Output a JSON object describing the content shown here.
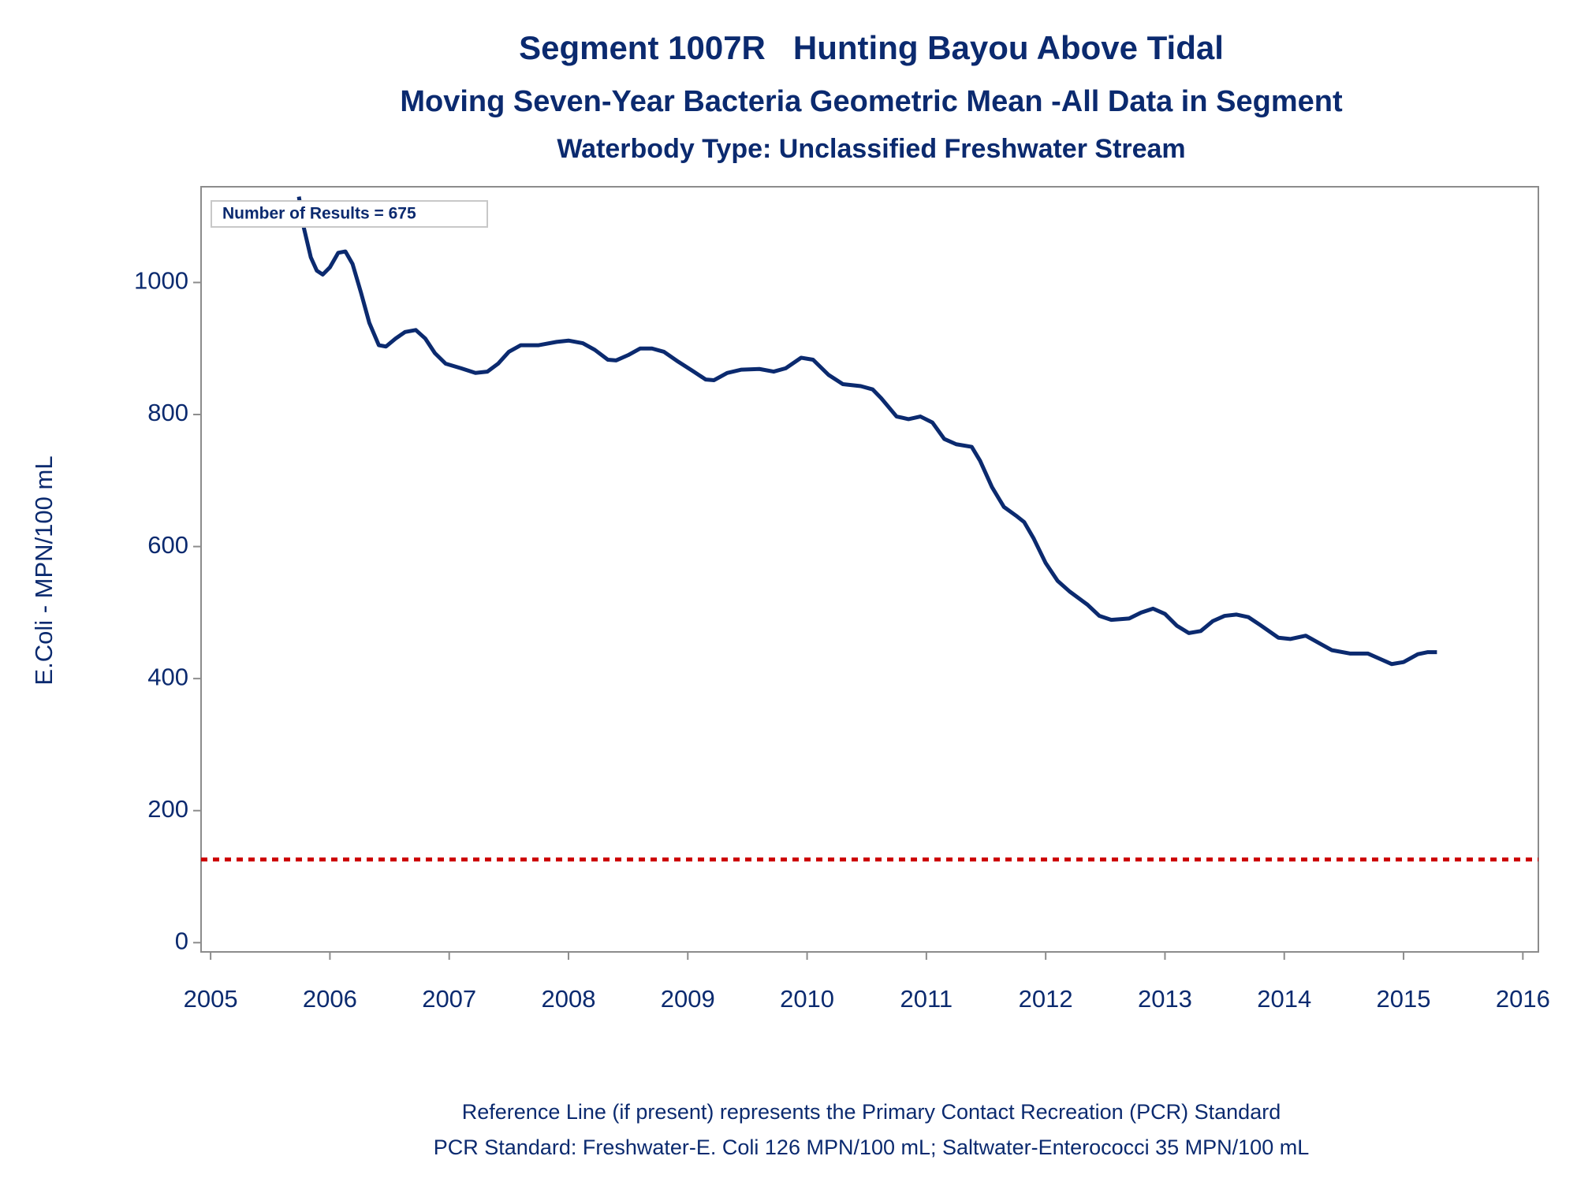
{
  "chart_data": {
    "type": "line",
    "title": "Segment 1007R   Hunting Bayou Above Tidal",
    "subtitles": [
      "Moving Seven-Year Bacteria Geometric Mean -All Data in Segment",
      "Waterbody Type: Unclassified Freshwater Stream"
    ],
    "y_label": "E.Coli - MPN/100 mL",
    "annotation": "Number of Results = 675",
    "footnotes": [
      "Reference Line (if present) represents the Primary Contact Recreation (PCR) Standard",
      "PCR Standard: Freshwater-E. Coli 126 MPN/100 mL; Saltwater-Enterococci 35 MPN/100 mL"
    ],
    "xlim": [
      2004.92,
      2016.13
    ],
    "xticks": [
      2005,
      2006,
      2007,
      2008,
      2009,
      2010,
      2011,
      2012,
      2013,
      2014,
      2015,
      2016
    ],
    "ylim": [
      -14,
      1145
    ],
    "yticks": [
      0,
      200,
      400,
      600,
      800,
      1000
    ],
    "reference_line": {
      "value": 126,
      "color": "#cc0000"
    },
    "series": [
      {
        "color": "#0b2a6f",
        "x": [
          2005.74,
          2005.78,
          2005.84,
          2005.89,
          2005.94,
          2006.0,
          2006.07,
          2006.13,
          2006.19,
          2006.26,
          2006.33,
          2006.41,
          2006.47,
          2006.55,
          2006.63,
          2006.72,
          2006.8,
          2006.88,
          2006.97,
          2007.1,
          2007.22,
          2007.32,
          2007.41,
          2007.5,
          2007.6,
          2007.75,
          2007.9,
          2008.0,
          2008.12,
          2008.22,
          2008.33,
          2008.4,
          2008.5,
          2008.6,
          2008.7,
          2008.8,
          2008.92,
          2009.05,
          2009.15,
          2009.22,
          2009.33,
          2009.45,
          2009.6,
          2009.72,
          2009.82,
          2009.95,
          2010.05,
          2010.18,
          2010.3,
          2010.45,
          2010.55,
          2010.62,
          2010.75,
          2010.85,
          2010.95,
          2011.05,
          2011.15,
          2011.25,
          2011.38,
          2011.45,
          2011.55,
          2011.65,
          2011.75,
          2011.82,
          2011.9,
          2012.0,
          2012.1,
          2012.2,
          2012.35,
          2012.45,
          2012.55,
          2012.7,
          2012.8,
          2012.9,
          2013.0,
          2013.1,
          2013.2,
          2013.3,
          2013.4,
          2013.5,
          2013.6,
          2013.7,
          2013.8,
          2013.95,
          2014.05,
          2014.18,
          2014.3,
          2014.4,
          2014.55,
          2014.7,
          2014.8,
          2014.9,
          2015.0,
          2015.12,
          2015.2,
          2015.28
        ],
        "values": [
          1130,
          1084,
          1038,
          1018,
          1012,
          1023,
          1045,
          1047,
          1028,
          985,
          939,
          905,
          903,
          915,
          925,
          928,
          915,
          893,
          877,
          870,
          863,
          865,
          877,
          895,
          905,
          905,
          910,
          912,
          908,
          898,
          883,
          882,
          890,
          900,
          900,
          895,
          880,
          865,
          853,
          852,
          863,
          868,
          869,
          865,
          870,
          886,
          883,
          860,
          846,
          843,
          838,
          825,
          797,
          793,
          797,
          788,
          763,
          755,
          751,
          730,
          690,
          660,
          647,
          637,
          612,
          575,
          548,
          532,
          512,
          495,
          489,
          491,
          500,
          506,
          498,
          480,
          469,
          472,
          487,
          495,
          497,
          493,
          481,
          462,
          460,
          465,
          453,
          443,
          438,
          438,
          430,
          422,
          425,
          437,
          440,
          440
        ]
      }
    ]
  }
}
